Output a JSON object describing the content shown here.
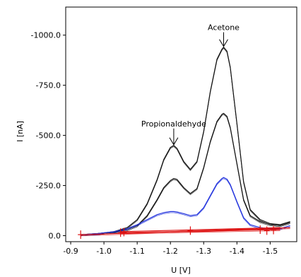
{
  "chart_data": {
    "type": "line",
    "title": "",
    "xlabel": "U [V]",
    "ylabel": "I [nA]",
    "x_ticks": [
      "-0.9",
      "-1.0",
      "-1.1",
      "-1.2",
      "-1.3",
      "-1.4",
      "-1.5"
    ],
    "y_ticks": [
      "0.0",
      "-250.0",
      "-500.0",
      "-750.0",
      "-1000.0"
    ],
    "xlim": [
      -0.885,
      -1.58
    ],
    "ylim": [
      30,
      -1140
    ],
    "grid": false,
    "legend": "none",
    "colors": {
      "black": "#111111",
      "blue": "#2233dd",
      "red": "#dd1111"
    },
    "annotations": [
      {
        "text": "Propionaldehyde",
        "x": -1.21,
        "y": -450,
        "label_y": -545
      },
      {
        "text": "Acetone",
        "x": -1.36,
        "y": -940,
        "label_y": -1025
      }
    ],
    "series": [
      {
        "color": "black",
        "x": [
          -0.93,
          -0.98,
          -1.03,
          -1.07,
          -1.1,
          -1.13,
          -1.16,
          -1.18,
          -1.2,
          -1.21,
          -1.22,
          -1.24,
          -1.26,
          -1.28,
          -1.3,
          -1.32,
          -1.34,
          -1.355,
          -1.36,
          -1.37,
          -1.38,
          -1.4,
          -1.42,
          -1.44,
          -1.47,
          -1.5,
          -1.53,
          -1.56
        ],
        "y": [
          -5,
          -10,
          -20,
          -40,
          -80,
          -160,
          -280,
          -380,
          -440,
          -450,
          -435,
          -370,
          -330,
          -370,
          -520,
          -720,
          -880,
          -930,
          -940,
          -920,
          -840,
          -560,
          -270,
          -130,
          -80,
          -60,
          -55,
          -70
        ]
      },
      {
        "color": "black",
        "x": [
          -0.93,
          -0.98,
          -1.03,
          -1.07,
          -1.1,
          -1.13,
          -1.16,
          -1.18,
          -1.2,
          -1.21,
          -1.22,
          -1.24,
          -1.26,
          -1.28,
          -1.3,
          -1.32,
          -1.34,
          -1.355,
          -1.36,
          -1.37,
          -1.38,
          -1.4,
          -1.42,
          -1.44,
          -1.47,
          -1.5,
          -1.53,
          -1.56
        ],
        "y": [
          -5,
          -10,
          -18,
          -30,
          -50,
          -100,
          -180,
          -240,
          -275,
          -285,
          -280,
          -240,
          -210,
          -235,
          -340,
          -470,
          -570,
          -605,
          -610,
          -595,
          -540,
          -360,
          -180,
          -100,
          -70,
          -55,
          -50,
          -65
        ]
      },
      {
        "color": "blue",
        "x": [
          -0.93,
          -0.98,
          -1.03,
          -1.07,
          -1.1,
          -1.13,
          -1.16,
          -1.18,
          -1.2,
          -1.21,
          -1.22,
          -1.24,
          -1.26,
          -1.28,
          -1.3,
          -1.32,
          -1.34,
          -1.355,
          -1.36,
          -1.37,
          -1.38,
          -1.4,
          -1.42,
          -1.44,
          -1.47,
          -1.5,
          -1.53,
          -1.56
        ],
        "y": [
          -5,
          -10,
          -20,
          -35,
          -55,
          -80,
          -105,
          -115,
          -120,
          -120,
          -118,
          -110,
          -100,
          -105,
          -140,
          -200,
          -260,
          -285,
          -290,
          -282,
          -255,
          -170,
          -90,
          -55,
          -40,
          -35,
          -35,
          -50
        ]
      },
      {
        "color": "red",
        "x": [
          -0.93,
          -1.56
        ],
        "y": [
          -5,
          -40
        ]
      },
      {
        "color": "red",
        "x": [
          -1.05,
          -1.53
        ],
        "y": [
          -15,
          -30
        ]
      },
      {
        "color": "red",
        "x": [
          -1.05,
          -1.53
        ],
        "y": [
          -20,
          -40
        ]
      }
    ],
    "markers": [
      {
        "color": "red",
        "x": -0.93,
        "y": -5
      },
      {
        "color": "red",
        "x": -1.05,
        "y": -15
      },
      {
        "color": "red",
        "x": -1.06,
        "y": -18
      },
      {
        "color": "red",
        "x": -1.26,
        "y": -25
      },
      {
        "color": "red",
        "x": -1.47,
        "y": -30
      },
      {
        "color": "red",
        "x": -1.49,
        "y": -25
      },
      {
        "color": "red",
        "x": -1.51,
        "y": -28
      }
    ]
  }
}
